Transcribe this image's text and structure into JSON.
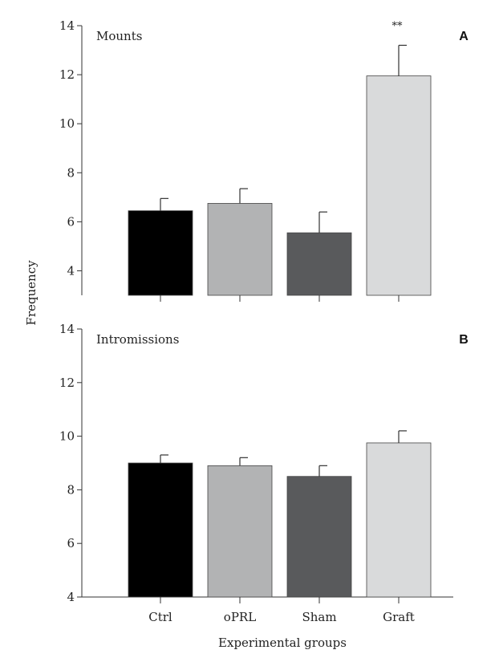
{
  "figure": {
    "ylabel": "Frequency",
    "xlabel": "Experimental groups",
    "categories": [
      "Ctrl",
      "oPRL",
      "Sham",
      "Graft"
    ],
    "colors": {
      "Ctrl": "#000000",
      "oPRL": "#b2b3b4",
      "Sham": "#595a5c",
      "Graft": "#d9dadb",
      "axis": "#333333",
      "bar_edge": "#444444"
    }
  },
  "chart_data": [
    {
      "type": "bar",
      "panel": "A",
      "title": "Mounts",
      "categories": [
        "Ctrl",
        "oPRL",
        "Sham",
        "Graft"
      ],
      "values": [
        6.45,
        6.75,
        5.55,
        11.95
      ],
      "errors": [
        0.5,
        0.6,
        0.85,
        1.25
      ],
      "annotations": [
        {
          "category": "Graft",
          "text": "**"
        }
      ],
      "ylim": [
        3,
        14
      ],
      "yticks": [
        4,
        6,
        8,
        10,
        12,
        14
      ],
      "ylabel": "Frequency",
      "xlabel": ""
    },
    {
      "type": "bar",
      "panel": "B",
      "title": "Intromissions",
      "categories": [
        "Ctrl",
        "oPRL",
        "Sham",
        "Graft"
      ],
      "values": [
        9.0,
        8.9,
        8.5,
        9.75
      ],
      "errors": [
        0.3,
        0.3,
        0.4,
        0.45
      ],
      "annotations": [],
      "ylim": [
        4,
        14
      ],
      "yticks": [
        4,
        6,
        8,
        10,
        12,
        14
      ],
      "ylabel": "Frequency",
      "xlabel": "Experimental groups"
    }
  ]
}
